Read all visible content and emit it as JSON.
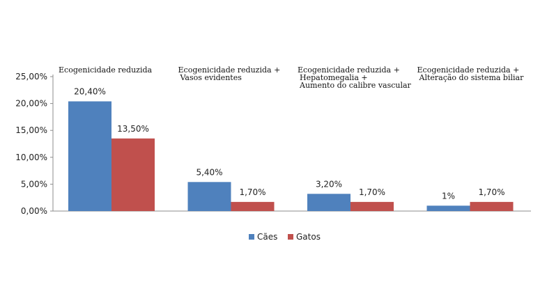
{
  "chart_data": {
    "type": "bar",
    "categories": [
      [
        "Ecogenicidade reduzida"
      ],
      [
        "Ecogenicidade reduzida +",
        "Vasos evidentes"
      ],
      [
        "Ecogenicidade reduzida +",
        "Hepatomegalia +",
        "Aumento do calibre vascular"
      ],
      [
        "Ecogenicidade reduzida +",
        "Alteração do sistema biliar"
      ]
    ],
    "series": [
      {
        "name": "Cães",
        "color": "#4F81BD",
        "values": [
          20.4,
          5.4,
          3.2,
          1.0
        ],
        "labels": [
          "20,40%",
          "5,40%",
          "3,20%",
          "1%"
        ]
      },
      {
        "name": "Gatos",
        "color": "#C0504D",
        "values": [
          13.5,
          1.7,
          1.7,
          1.7
        ],
        "labels": [
          "13,50%",
          "1,70%",
          "1,70%",
          "1,70%"
        ]
      }
    ],
    "ylim": [
      0,
      25
    ],
    "yticks": [
      0,
      5,
      10,
      15,
      20,
      25
    ],
    "ytick_labels": [
      "0,00%",
      "5,00%",
      "10,00%",
      "15,00%",
      "20,00%",
      "25,00%"
    ],
    "legend_position": "bottom",
    "grid": false
  }
}
